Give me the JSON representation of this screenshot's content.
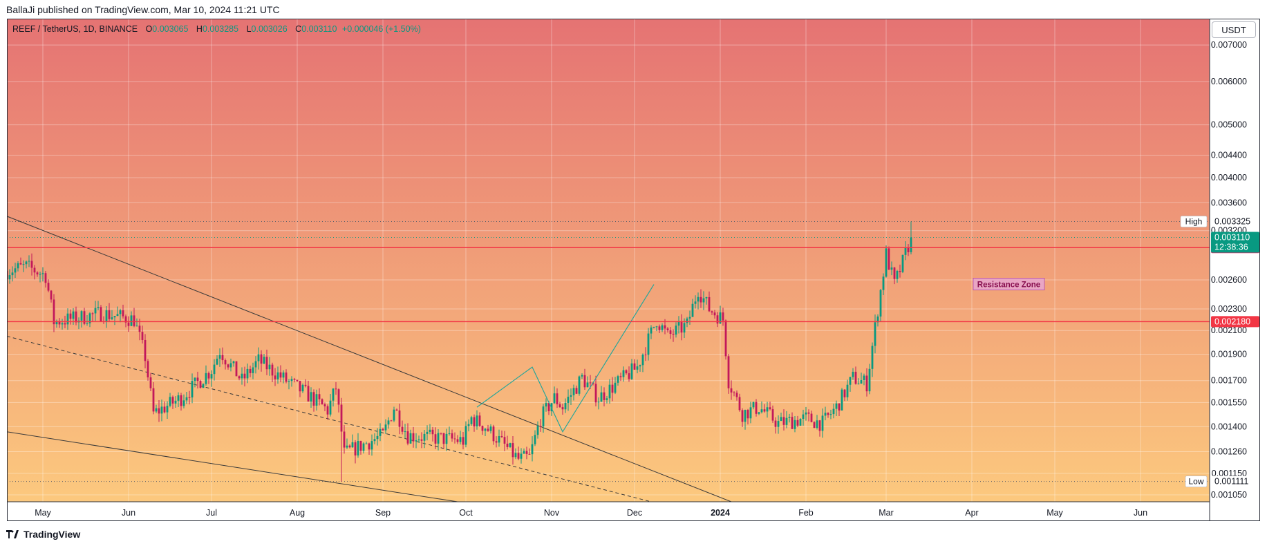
{
  "header": {
    "published": "BallaJi published on TradingView.com, Mar 10, 2024 11:21 UTC"
  },
  "legend": {
    "symbol": "REEF / TetherUS, 1D, BINANCE",
    "o_label": "O",
    "o": "0.003065",
    "h_label": "H",
    "h": "0.003285",
    "l_label": "L",
    "l": "0.003026",
    "c_label": "C",
    "c": "0.003110",
    "change": "+0.000046 (+1.50%)"
  },
  "currency_button": "USDT",
  "footer": {
    "brand": "TradingView"
  },
  "colors": {
    "bg_top": "#e57373",
    "bg_bottom": "#fcc97e",
    "up": "#089981",
    "down": "#c2185b",
    "resistance": "#f23645",
    "last_price": "#089981",
    "trendline": "#3a3a3a",
    "zigzag": "#26a69a"
  },
  "chart_data": {
    "type": "candlestick",
    "symbol": "REEF / TetherUS",
    "interval": "1D",
    "exchange": "BINANCE",
    "y_scale": "log",
    "ylim": [
      0.00102,
      0.0078
    ],
    "y_ticks": [
      "0.007000",
      "0.006000",
      "0.005000",
      "0.004400",
      "0.004000",
      "0.003600",
      "0.003200",
      "0.002600",
      "0.002300",
      "0.002100",
      "0.001900",
      "0.001700",
      "0.001550",
      "0.001400",
      "0.001260",
      "0.001150",
      "0.001050"
    ],
    "x_ticks": [
      {
        "label": "May",
        "date": "2023-05-01"
      },
      {
        "label": "Jun",
        "date": "2023-06-01"
      },
      {
        "label": "Jul",
        "date": "2023-07-01"
      },
      {
        "label": "Aug",
        "date": "2023-08-01"
      },
      {
        "label": "Sep",
        "date": "2023-09-01"
      },
      {
        "label": "Oct",
        "date": "2023-10-01"
      },
      {
        "label": "Nov",
        "date": "2023-11-01"
      },
      {
        "label": "Dec",
        "date": "2023-12-01"
      },
      {
        "label": "2024",
        "date": "2024-01-01",
        "bold": true
      },
      {
        "label": "Feb",
        "date": "2024-02-01"
      },
      {
        "label": "Mar",
        "date": "2024-03-01"
      },
      {
        "label": "Apr",
        "date": "2024-04-01"
      },
      {
        "label": "May",
        "date": "2024-05-01"
      },
      {
        "label": "Jun",
        "date": "2024-06-01"
      }
    ],
    "date_range": [
      "2023-04-18",
      "2024-06-26"
    ],
    "last_close": 0.00311,
    "countdown": "12:38:36",
    "high": {
      "label": "High",
      "value": "0.003325"
    },
    "low": {
      "label": "Low",
      "value": "0.001111"
    },
    "resistance_zone": {
      "label": "Resistance Zone",
      "upper": "0.002979",
      "lower": "0.002180"
    },
    "price_keypoints": [
      {
        "date": "2023-04-18",
        "close": 0.0027
      },
      {
        "date": "2023-04-25",
        "close": 0.00275
      },
      {
        "date": "2023-05-02",
        "close": 0.00265
      },
      {
        "date": "2023-05-05",
        "close": 0.00218
      },
      {
        "date": "2023-05-15",
        "close": 0.00222
      },
      {
        "date": "2023-05-22",
        "close": 0.00226
      },
      {
        "date": "2023-06-03",
        "close": 0.0022
      },
      {
        "date": "2023-06-07",
        "close": 0.00188
      },
      {
        "date": "2023-06-10",
        "close": 0.00148
      },
      {
        "date": "2023-06-20",
        "close": 0.00158
      },
      {
        "date": "2023-07-01",
        "close": 0.00178
      },
      {
        "date": "2023-07-04",
        "close": 0.00193
      },
      {
        "date": "2023-07-12",
        "close": 0.0017
      },
      {
        "date": "2023-07-18",
        "close": 0.00185
      },
      {
        "date": "2023-07-28",
        "close": 0.0017
      },
      {
        "date": "2023-08-05",
        "close": 0.0016
      },
      {
        "date": "2023-08-12",
        "close": 0.0015
      },
      {
        "date": "2023-08-15",
        "close": 0.00165
      },
      {
        "date": "2023-08-18",
        "close": 0.00125
      },
      {
        "date": "2023-09-01",
        "close": 0.00135
      },
      {
        "date": "2023-09-05",
        "close": 0.00152
      },
      {
        "date": "2023-09-10",
        "close": 0.00135
      },
      {
        "date": "2023-09-30",
        "close": 0.00132
      },
      {
        "date": "2023-10-03",
        "close": 0.00145
      },
      {
        "date": "2023-10-08",
        "close": 0.0014
      },
      {
        "date": "2023-10-20",
        "close": 0.00122
      },
      {
        "date": "2023-10-24",
        "close": 0.00123
      },
      {
        "date": "2023-10-28",
        "close": 0.00145
      },
      {
        "date": "2023-11-02",
        "close": 0.00158
      },
      {
        "date": "2023-11-05",
        "close": 0.00152
      },
      {
        "date": "2023-11-12",
        "close": 0.00172
      },
      {
        "date": "2023-11-18",
        "close": 0.00158
      },
      {
        "date": "2023-12-02",
        "close": 0.0018
      },
      {
        "date": "2023-12-09",
        "close": 0.0022
      },
      {
        "date": "2023-12-13",
        "close": 0.00205
      },
      {
        "date": "2023-12-20",
        "close": 0.00215
      },
      {
        "date": "2023-12-24",
        "close": 0.0025
      },
      {
        "date": "2023-12-28",
        "close": 0.0023
      },
      {
        "date": "2024-01-02",
        "close": 0.0022
      },
      {
        "date": "2024-01-04",
        "close": 0.0017
      },
      {
        "date": "2024-01-09",
        "close": 0.00148
      },
      {
        "date": "2024-01-15",
        "close": 0.00152
      },
      {
        "date": "2024-01-22",
        "close": 0.00142
      },
      {
        "date": "2024-02-01",
        "close": 0.00145
      },
      {
        "date": "2024-02-07",
        "close": 0.00142
      },
      {
        "date": "2024-02-12",
        "close": 0.00152
      },
      {
        "date": "2024-02-18",
        "close": 0.00172
      },
      {
        "date": "2024-02-23",
        "close": 0.00168
      },
      {
        "date": "2024-02-27",
        "close": 0.0023
      },
      {
        "date": "2024-03-01",
        "close": 0.0029
      },
      {
        "date": "2024-03-04",
        "close": 0.00255
      },
      {
        "date": "2024-03-07",
        "close": 0.0028
      },
      {
        "date": "2024-03-10",
        "close": 0.00311
      }
    ],
    "trendlines": [
      {
        "style": "solid",
        "from": {
          "date": "2023-04-18",
          "price": 0.0034
        },
        "to": {
          "date": "2024-01-05",
          "price": 0.00102
        }
      },
      {
        "style": "dashed",
        "from": {
          "date": "2023-04-18",
          "price": 0.00205
        },
        "to": {
          "date": "2023-12-07",
          "price": 0.00102
        }
      },
      {
        "style": "solid",
        "from": {
          "date": "2023-04-18",
          "price": 0.00137
        },
        "to": {
          "date": "2023-09-28",
          "price": 0.00102
        }
      }
    ],
    "zigzag": [
      {
        "date": "2023-10-05",
        "price": 0.00152
      },
      {
        "date": "2023-10-25",
        "price": 0.0018
      },
      {
        "date": "2023-11-05",
        "price": 0.00137
      },
      {
        "date": "2023-12-08",
        "price": 0.00255
      }
    ]
  }
}
